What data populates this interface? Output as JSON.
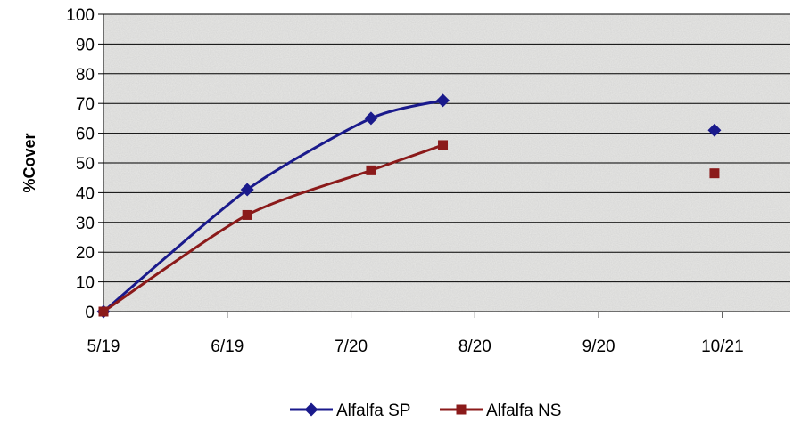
{
  "chart_data": {
    "type": "line",
    "ylabel": "%Cover",
    "xlabel": "",
    "title": "",
    "x_tick_labels": [
      "5/19",
      "6/19",
      "7/20",
      "8/20",
      "9/20",
      "10/21"
    ],
    "x_ticks": [
      "2000-05-19",
      "2000-06-19",
      "2000-07-20",
      "2000-08-20",
      "2000-09-20",
      "2000-10-21"
    ],
    "xlim": [
      "2000-05-19",
      "2000-11-07"
    ],
    "ylim": [
      0,
      100
    ],
    "y_ticks": [
      0,
      10,
      20,
      30,
      40,
      50,
      60,
      70,
      80,
      90,
      100
    ],
    "grid": "horizontal",
    "legend_position": "bottom",
    "plot_background": "#e8e8e6",
    "series": [
      {
        "name": "Alfalfa SP",
        "color": "#1a1a8c",
        "marker": "diamond",
        "points": [
          {
            "x": "2000-05-19",
            "y": 0
          },
          {
            "x": "2000-06-24",
            "y": 41
          },
          {
            "x": "2000-07-25",
            "y": 65
          },
          {
            "x": "2000-08-12",
            "y": 71
          },
          {
            "x": "2000-10-19",
            "y": 61
          }
        ],
        "connected_points": 4
      },
      {
        "name": "Alfalfa NS",
        "color": "#8b1a1a",
        "marker": "square",
        "points": [
          {
            "x": "2000-05-19",
            "y": 0
          },
          {
            "x": "2000-06-24",
            "y": 32.5
          },
          {
            "x": "2000-07-25",
            "y": 47.5
          },
          {
            "x": "2000-08-12",
            "y": 56
          },
          {
            "x": "2000-10-19",
            "y": 46.5
          }
        ],
        "connected_points": 4
      }
    ]
  }
}
